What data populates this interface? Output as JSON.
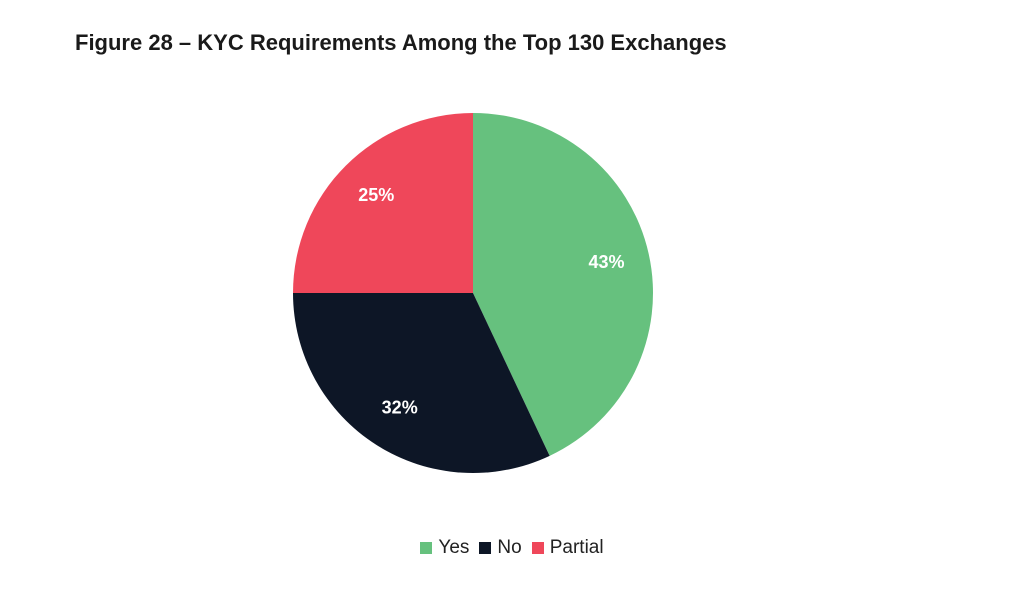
{
  "chart_data": {
    "type": "pie",
    "title": "Figure 28 – KYC Requirements Among the Top 130 Exchanges",
    "categories": [
      "Yes",
      "No",
      "Partial"
    ],
    "values": [
      43,
      32,
      25
    ],
    "value_labels": [
      "43%",
      "32%",
      "25%"
    ],
    "colors": [
      "#66c17e",
      "#0d1626",
      "#ef475a"
    ]
  }
}
